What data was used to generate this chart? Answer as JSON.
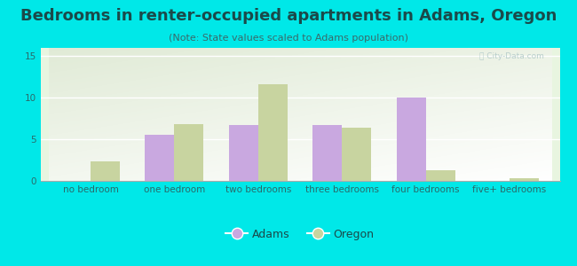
{
  "title": "Bedrooms in renter-occupied apartments in Adams, Oregon",
  "subtitle": "(Note: State values scaled to Adams population)",
  "categories": [
    "no bedroom",
    "one bedroom",
    "two bedrooms",
    "three bedrooms",
    "four bedrooms",
    "five+ bedrooms"
  ],
  "adams_values": [
    0,
    5.5,
    6.7,
    6.7,
    10.0,
    0
  ],
  "oregon_values": [
    2.4,
    6.8,
    11.6,
    6.4,
    1.3,
    0.3
  ],
  "adams_color": "#c9a8e0",
  "oregon_color": "#c8d4a0",
  "background_color": "#00e8e8",
  "ylim": [
    0,
    16
  ],
  "yticks": [
    0,
    5,
    10,
    15
  ],
  "bar_width": 0.35,
  "legend_adams": "Adams",
  "legend_oregon": "Oregon",
  "title_fontsize": 13,
  "subtitle_fontsize": 8,
  "tick_fontsize": 7.5,
  "legend_fontsize": 9
}
